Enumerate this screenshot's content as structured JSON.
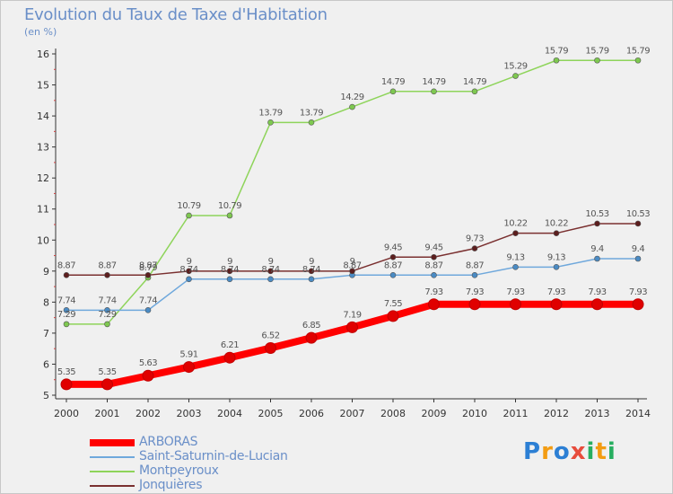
{
  "header": {
    "title": "Evolution du Taux de Taxe d'Habitation",
    "subtitle": "(en %)"
  },
  "logo": {
    "text": "Proxiti",
    "letters": [
      "P",
      "r",
      "o",
      "x",
      "i",
      "t",
      "i"
    ],
    "colors": [
      "#2c7fd4",
      "#f39c12",
      "#2c7fd4",
      "#e74c3c",
      "#27ae60",
      "#f39c12",
      "#27ae60"
    ]
  },
  "chart_data": {
    "type": "line",
    "title": "Evolution du Taux de Taxe d'Habitation",
    "ylabel": "(en %)",
    "xlabel": "",
    "ylim": [
      5,
      16
    ],
    "yticks": [
      "5",
      "6",
      "7",
      "8",
      "9",
      "10",
      "11",
      "12",
      "13",
      "14",
      "15",
      "16"
    ],
    "x": [
      "2000",
      "2001",
      "2002",
      "2003",
      "2004",
      "2005",
      "2006",
      "2007",
      "2008",
      "2009",
      "2010",
      "2011",
      "2012",
      "2013",
      "2014"
    ],
    "grid": false,
    "legend_position": "bottom-left",
    "series": [
      {
        "name": "Montpeyroux",
        "color": "#8ed45a",
        "marker_color": "#7ec850",
        "values": [
          7.29,
          7.29,
          8.79,
          10.79,
          10.79,
          13.79,
          13.79,
          14.29,
          14.79,
          14.79,
          14.79,
          15.29,
          15.79,
          15.79,
          15.79
        ],
        "labels": [
          "7.29",
          "7.29",
          "8.79",
          "10.79",
          "10.79",
          "13.79",
          "13.79",
          "14.29",
          "14.79",
          "14.79",
          "14.79",
          "15.29",
          "15.79",
          "15.79",
          "15.79"
        ]
      },
      {
        "name": "Saint-Saturnin-de-Lucian",
        "color": "#6fa8dc",
        "marker_color": "#4a8bc4",
        "values": [
          7.74,
          7.74,
          7.74,
          8.74,
          8.74,
          8.74,
          8.74,
          8.87,
          8.87,
          8.87,
          8.87,
          9.13,
          9.13,
          9.4,
          9.4
        ],
        "labels": [
          "7.74",
          "7.74",
          "7.74",
          "8.74",
          "8.74",
          "8.74",
          "8.74",
          "8.87",
          "8.87",
          "8.87",
          "8.87",
          "9.13",
          "9.13",
          "9.4",
          "9.4"
        ]
      },
      {
        "name": "Jonquières",
        "color": "#7a3030",
        "marker_color": "#5c1e1e",
        "values": [
          8.87,
          8.87,
          8.87,
          9,
          9,
          9,
          9,
          9,
          9.45,
          9.45,
          9.73,
          10.22,
          10.22,
          10.53,
          10.53
        ],
        "labels": [
          "8.87",
          "8.87",
          "8.87",
          "9",
          "9",
          "9",
          "9",
          "9",
          "9.45",
          "9.45",
          "9.73",
          "10.22",
          "10.22",
          "10.53",
          "10.53"
        ]
      },
      {
        "name": "ARBORAS",
        "color": "#ff0000",
        "marker_color": "#e00000",
        "values": [
          5.35,
          5.35,
          5.63,
          5.91,
          6.21,
          6.52,
          6.85,
          7.19,
          7.55,
          7.93,
          7.93,
          7.93,
          7.93,
          7.93,
          7.93
        ],
        "labels": [
          "5.35",
          "5.35",
          "5.63",
          "5.91",
          "6.21",
          "6.52",
          "6.85",
          "7.19",
          "7.55",
          "7.93",
          "7.93",
          "7.93",
          "7.93",
          "7.93",
          "7.93"
        ]
      }
    ],
    "legend": [
      {
        "name": "ARBORAS",
        "color": "#ff0000",
        "thick": true
      },
      {
        "name": "Saint-Saturnin-de-Lucian",
        "color": "#6fa8dc",
        "thick": false
      },
      {
        "name": "Montpeyroux",
        "color": "#8ed45a",
        "thick": false
      },
      {
        "name": "Jonquières",
        "color": "#7a3030",
        "thick": false
      }
    ]
  }
}
